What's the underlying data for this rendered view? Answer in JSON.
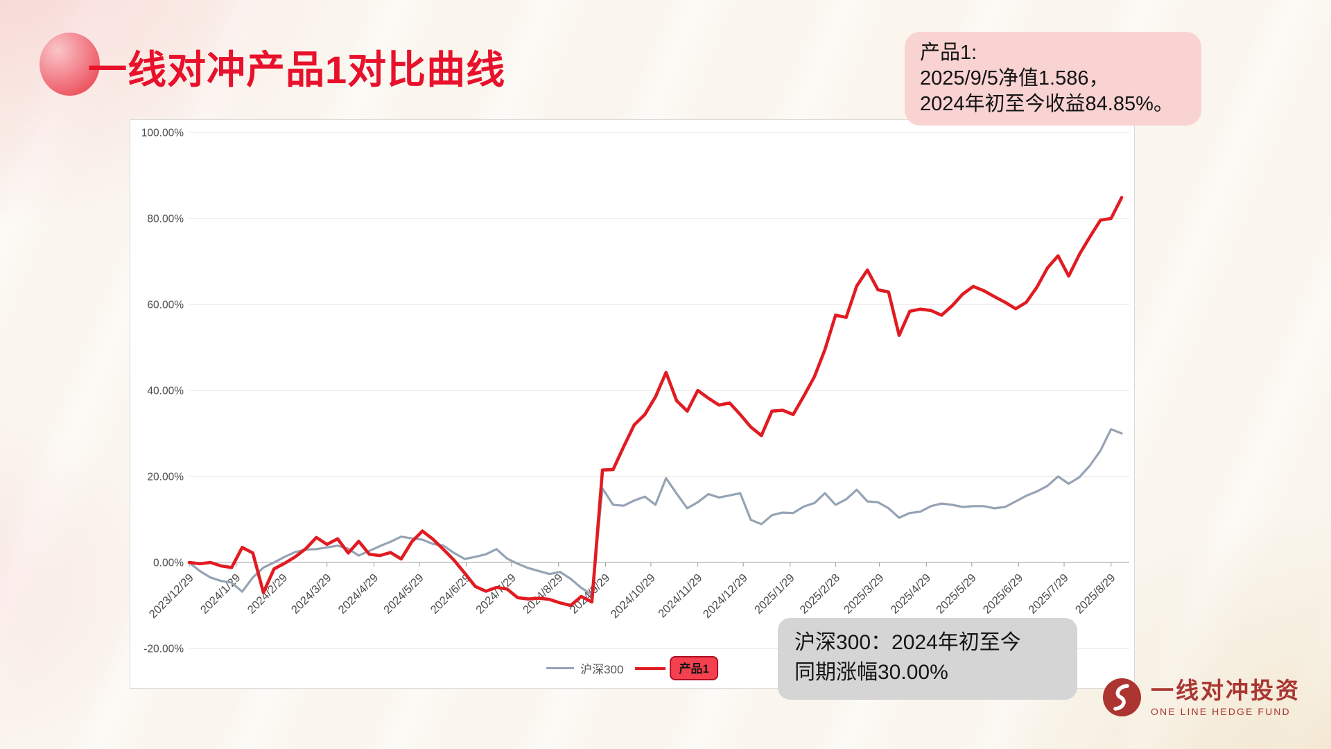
{
  "page": {
    "title": "一线对冲产品1对比曲线"
  },
  "callout_product": {
    "lines": [
      "产品1:",
      "2025/9/5净值1.586，",
      "2024年初至今收益84.85%。"
    ]
  },
  "callout_benchmark": {
    "lines": [
      "沪深300：2024年初至今",
      "同期涨幅30.00%"
    ]
  },
  "logo": {
    "name_cn": "一线对冲投资",
    "name_en": "ONE LINE HEDGE FUND"
  },
  "colors": {
    "title_red": "#e8112b",
    "product_line": "#e11b22",
    "benchmark_line": "#95a3b4",
    "legend_chip_bg": "#f4404f",
    "legend_chip_border": "#ae0f24",
    "callout_pink_bg": "#f9d2d2",
    "callout_gray_bg": "#d5d5d6",
    "logo_red": "#a93631",
    "gridline": "#e6e6e6",
    "axis_line": "#bfbfbf",
    "axis_label": "#4d4d4d"
  },
  "chart_data": {
    "type": "line",
    "title": "",
    "xlabel": "",
    "ylabel": "",
    "grid": true,
    "legend_position": "bottom",
    "ylim": [
      -20,
      100
    ],
    "x_start": "2023/12/29",
    "x_end": "2025/9/5",
    "x_frequency": "weekly",
    "y_ticks": [
      {
        "value": 100,
        "label": "100.00%"
      },
      {
        "value": 80,
        "label": "80.00%"
      },
      {
        "value": 60,
        "label": "60.00%"
      },
      {
        "value": 40,
        "label": "40.00%"
      },
      {
        "value": 20,
        "label": "20.00%"
      },
      {
        "value": 0,
        "label": "0.00%"
      },
      {
        "value": -20,
        "label": "-20.00%"
      }
    ],
    "x_tick_labels": [
      "2023/12/29",
      "2024/1/29",
      "2024/2/29",
      "2024/3/29",
      "2024/4/29",
      "2024/5/29",
      "2024/6/29",
      "2024/7/29",
      "2024/8/29",
      "2024/9/29",
      "2024/10/29",
      "2024/11/29",
      "2024/12/29",
      "2025/1/29",
      "2025/2/28",
      "2025/3/29",
      "2025/4/29",
      "2025/5/29",
      "2025/6/29",
      "2025/7/29",
      "2025/8/29"
    ],
    "series": [
      {
        "name": "沪深300",
        "color": "#95a3b4",
        "final_value_pct": 30.0,
        "values": [
          0,
          -2,
          -3.5,
          -4.3,
          -4.7,
          -6.8,
          -3.5,
          -1.2,
          0,
          1.3,
          2.4,
          3,
          3.1,
          3.5,
          3.9,
          3.2,
          1.6,
          2.7,
          3.8,
          4.8,
          6,
          5.6,
          5.3,
          4.3,
          3.9,
          2.2,
          0.8,
          1.3,
          1.9,
          3.1,
          0.9,
          -0.3,
          -1.3,
          -2,
          -2.7,
          -2.2,
          -3.8,
          -5.9,
          -7.5,
          17.2,
          13.4,
          13.2,
          14.4,
          15.3,
          13.4,
          19.6,
          16,
          12.6,
          14,
          15.9,
          15.1,
          15.6,
          16.1,
          9.9,
          8.9,
          11,
          11.6,
          11.5,
          13,
          13.8,
          16.1,
          13.4,
          14.7,
          16.9,
          14.2,
          14,
          12.6,
          10.4,
          11.5,
          11.8,
          13.1,
          13.7,
          13.4,
          12.9,
          13.1,
          13.1,
          12.6,
          12.9,
          14.2,
          15.5,
          16.5,
          17.8,
          20,
          18.3,
          19.8,
          22.5,
          26,
          31,
          30
        ]
      },
      {
        "name": "产品1",
        "color": "#e11b22",
        "final_value_pct": 84.85,
        "final_nav": 1.586,
        "values": [
          0,
          -0.3,
          0,
          -0.8,
          -1.2,
          3.5,
          2.2,
          -7,
          -1.5,
          -0.2,
          1.3,
          3.2,
          5.8,
          4.2,
          5.5,
          2.2,
          4.9,
          1.9,
          1.6,
          2.3,
          0.8,
          4.8,
          7.3,
          5.4,
          3,
          0.5,
          -2.5,
          -5.6,
          -6.7,
          -5.8,
          -6.2,
          -8.2,
          -8.5,
          -8.3,
          -8.6,
          -9.4,
          -10,
          -7.9,
          -9.2,
          21.5,
          21.6,
          26.9,
          32,
          34.4,
          38.5,
          44.2,
          37.6,
          35.2,
          40,
          38.2,
          36.6,
          37.1,
          34.4,
          31.5,
          29.5,
          35.2,
          35.4,
          34.4,
          38.7,
          43.2,
          49.5,
          57.5,
          57,
          64.3,
          68,
          63.4,
          62.9,
          52.8,
          58.4,
          58.9,
          58.6,
          57.5,
          59.7,
          62.4,
          64.2,
          63.2,
          61.8,
          60.5,
          59,
          60.5,
          64,
          68.5,
          71.3,
          66.6,
          71.6,
          75.7,
          79.6,
          80,
          84.85
        ]
      }
    ]
  }
}
